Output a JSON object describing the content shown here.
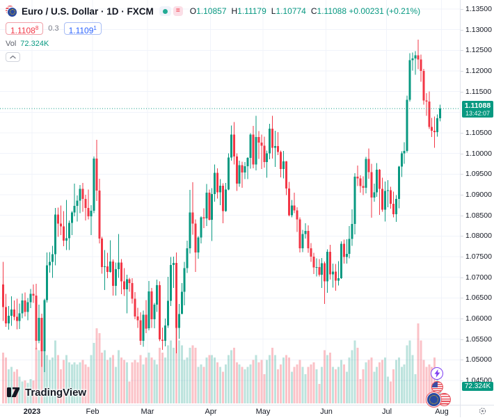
{
  "header": {
    "symbol_title": "Euro / U.S. Dollar · 1D · FXCM",
    "ohlc": {
      "o_label": "O",
      "o": "1.10857",
      "h_label": "H",
      "h": "1.11179",
      "l_label": "L",
      "l": "1.10774",
      "c_label": "C",
      "c": "1.11088",
      "change": "+0.00231",
      "change_pct": "(+0.21%)"
    },
    "bid": "1.1108",
    "bid_sup": "8",
    "spread": "0.3",
    "ask": "1.1109",
    "ask_sup": "1",
    "vol_label": "Vol",
    "vol_value": "72.324K",
    "collapse_glyph": "⌃",
    "fund_badge_glyph": "="
  },
  "price_scale": {
    "labels": [
      "1.13500",
      "1.13000",
      "1.12500",
      "1.12000",
      "1.11500",
      "1.10500",
      "1.10000",
      "1.09500",
      "1.09000",
      "1.08500",
      "1.08000",
      "1.07500",
      "1.07000",
      "1.06500",
      "1.06000",
      "1.05500",
      "1.05000",
      "1.04500"
    ],
    "current_price": "1.11088",
    "countdown": "13:42:07",
    "volume_badge": "72.324K"
  },
  "time_scale": {
    "markers": [
      {
        "label": "2023",
        "index": 11,
        "year": true
      },
      {
        "label": "Feb",
        "index": 33
      },
      {
        "label": "Mar",
        "index": 53
      },
      {
        "label": "Apr",
        "index": 76
      },
      {
        "label": "May",
        "index": 95
      },
      {
        "label": "Jun",
        "index": 118
      },
      {
        "label": "Jul",
        "index": 140
      },
      {
        "label": "Aug",
        "index": 160
      }
    ]
  },
  "logo": {
    "text": "TradingView"
  },
  "chart_data": {
    "type": "candlestick",
    "title": "Euro / U.S. Dollar",
    "timeframe": "1D",
    "exchange": "FXCM",
    "ylim": [
      1.045,
      1.135
    ],
    "grid_step": 0.005,
    "grid_on": true,
    "current_price": 1.11088,
    "volume_axis_max": 330,
    "colors": {
      "up": "#089981",
      "down": "#f23645",
      "vol_up": "rgba(8,153,129,0.27)",
      "vol_down": "rgba(242,54,69,0.3)",
      "grid": "#f0f3fa",
      "accent": "#089981"
    },
    "candles": [
      [
        1.0683,
        1.0737,
        1.0594,
        1.0628,
        210
      ],
      [
        1.0628,
        1.066,
        1.058,
        1.0588,
        190
      ],
      [
        1.0588,
        1.063,
        1.0573,
        1.0607,
        140
      ],
      [
        1.0607,
        1.0654,
        1.0582,
        1.0622,
        150
      ],
      [
        1.0622,
        1.0644,
        1.0596,
        1.0604,
        130
      ],
      [
        1.0604,
        1.0648,
        1.0574,
        1.0594,
        140
      ],
      [
        1.0594,
        1.0636,
        1.0575,
        1.0613,
        110
      ],
      [
        1.0613,
        1.0661,
        1.0601,
        1.0644,
        90
      ],
      [
        1.0644,
        1.0663,
        1.0605,
        1.0616,
        95
      ],
      [
        1.0616,
        1.065,
        1.0596,
        1.064,
        85
      ],
      [
        1.064,
        1.0672,
        1.0625,
        1.066,
        100
      ],
      [
        1.066,
        1.0683,
        1.0638,
        1.0656,
        95
      ],
      [
        1.0656,
        1.0684,
        1.0525,
        1.0546,
        230
      ],
      [
        1.0546,
        1.0634,
        1.054,
        1.0602,
        220
      ],
      [
        1.0602,
        1.0612,
        1.0483,
        1.0521,
        240
      ],
      [
        1.0521,
        1.0648,
        1.047,
        1.0645,
        300
      ],
      [
        1.0645,
        1.076,
        1.0639,
        1.0729,
        200
      ],
      [
        1.0729,
        1.0761,
        1.0711,
        1.0737,
        180
      ],
      [
        1.0737,
        1.0776,
        1.0699,
        1.0756,
        190
      ],
      [
        1.0756,
        1.0868,
        1.0729,
        1.0852,
        260
      ],
      [
        1.0852,
        1.0869,
        1.0798,
        1.083,
        200
      ],
      [
        1.083,
        1.0874,
        1.0802,
        1.0823,
        140
      ],
      [
        1.0823,
        1.086,
        1.0775,
        1.0789,
        180
      ],
      [
        1.0789,
        1.0887,
        1.0766,
        1.0795,
        200
      ],
      [
        1.0795,
        1.0838,
        1.0766,
        1.0832,
        170
      ],
      [
        1.0832,
        1.086,
        1.0802,
        1.0857,
        160
      ],
      [
        1.0857,
        1.0927,
        1.0848,
        1.0873,
        170
      ],
      [
        1.0873,
        1.0898,
        1.0835,
        1.0886,
        160
      ],
      [
        1.0886,
        1.0924,
        1.0855,
        1.0914,
        170
      ],
      [
        1.0914,
        1.0929,
        1.0859,
        1.089,
        180
      ],
      [
        1.089,
        1.09,
        1.0838,
        1.0868,
        160
      ],
      [
        1.0868,
        1.0913,
        1.084,
        1.0848,
        150
      ],
      [
        1.0848,
        1.0875,
        1.0802,
        1.0861,
        200
      ],
      [
        1.0861,
        1.0993,
        1.0855,
        1.0988,
        250
      ],
      [
        1.0988,
        1.1033,
        1.0885,
        1.091,
        310
      ],
      [
        1.091,
        1.0939,
        1.0782,
        1.0794,
        290
      ],
      [
        1.0794,
        1.0798,
        1.0709,
        1.0725,
        210
      ],
      [
        1.0725,
        1.0766,
        1.0669,
        1.0726,
        220
      ],
      [
        1.0726,
        1.0759,
        1.0698,
        1.0713,
        180
      ],
      [
        1.0713,
        1.079,
        1.0711,
        1.0738,
        190
      ],
      [
        1.0738,
        1.0743,
        1.0656,
        1.0679,
        200
      ],
      [
        1.0679,
        1.0736,
        1.0656,
        1.072,
        150
      ],
      [
        1.072,
        1.0805,
        1.0699,
        1.0736,
        220
      ],
      [
        1.0736,
        1.0744,
        1.0659,
        1.069,
        190
      ],
      [
        1.069,
        1.0722,
        1.0655,
        1.0671,
        180
      ],
      [
        1.0671,
        1.0706,
        1.0613,
        1.0695,
        170
      ],
      [
        1.0695,
        1.0699,
        1.0665,
        1.0686,
        90
      ],
      [
        1.0686,
        1.0698,
        1.0636,
        1.0648,
        170
      ],
      [
        1.0648,
        1.0664,
        1.0598,
        1.0605,
        180
      ],
      [
        1.0605,
        1.0626,
        1.0577,
        1.0596,
        170
      ],
      [
        1.0596,
        1.0615,
        1.0536,
        1.0546,
        200
      ],
      [
        1.0546,
        1.0619,
        1.0532,
        1.0609,
        160
      ],
      [
        1.0609,
        1.0645,
        1.0565,
        1.0576,
        190
      ],
      [
        1.0576,
        1.0691,
        1.0571,
        1.0666,
        210
      ],
      [
        1.0666,
        1.0674,
        1.0577,
        1.0598,
        190
      ],
      [
        1.0598,
        1.0638,
        1.0576,
        1.0634,
        180
      ],
      [
        1.0634,
        1.0694,
        1.0616,
        1.0681,
        160
      ],
      [
        1.0681,
        1.069,
        1.0545,
        1.0549,
        230
      ],
      [
        1.0549,
        1.0578,
        1.0524,
        1.0546,
        210
      ],
      [
        1.0546,
        1.06,
        1.0533,
        1.0583,
        190
      ],
      [
        1.0583,
        1.0701,
        1.0577,
        1.0643,
        240
      ],
      [
        1.0643,
        1.0749,
        1.063,
        1.073,
        260
      ],
      [
        1.073,
        1.075,
        1.0674,
        1.0735,
        230
      ],
      [
        1.0735,
        1.076,
        1.0516,
        1.0577,
        330
      ],
      [
        1.0577,
        1.0635,
        1.0551,
        1.0611,
        260
      ],
      [
        1.0611,
        1.0686,
        1.0611,
        1.0665,
        240
      ],
      [
        1.0665,
        1.0737,
        1.0632,
        1.0722,
        180
      ],
      [
        1.0722,
        1.0789,
        1.071,
        1.077,
        190
      ],
      [
        1.077,
        1.0912,
        1.0758,
        1.0857,
        230
      ],
      [
        1.0857,
        1.093,
        1.0803,
        1.083,
        240
      ],
      [
        1.083,
        1.084,
        1.0713,
        1.076,
        230
      ],
      [
        1.076,
        1.08,
        1.0745,
        1.0796,
        150
      ],
      [
        1.0796,
        1.0848,
        1.0782,
        1.0845,
        160
      ],
      [
        1.0845,
        1.0867,
        1.0819,
        1.0843,
        150
      ],
      [
        1.0843,
        1.0926,
        1.0824,
        1.0905,
        190
      ],
      [
        1.0905,
        1.0913,
        1.0838,
        1.0839,
        200
      ],
      [
        1.0839,
        1.0916,
        1.0788,
        1.0902,
        200
      ],
      [
        1.0902,
        1.0973,
        1.0883,
        1.0953,
        190
      ],
      [
        1.0953,
        1.0964,
        1.0891,
        1.0906,
        170
      ],
      [
        1.0906,
        1.0938,
        1.0875,
        1.0922,
        150
      ],
      [
        1.0922,
        1.0928,
        1.0831,
        1.086,
        130
      ],
      [
        1.086,
        1.0929,
        1.0859,
        1.0913,
        160
      ],
      [
        1.0913,
        1.1,
        1.0911,
        1.099,
        200
      ],
      [
        1.099,
        1.1068,
        1.0983,
        1.1046,
        220
      ],
      [
        1.1046,
        1.1076,
        1.0973,
        1.0993,
        230
      ],
      [
        1.0993,
        1.1,
        1.0909,
        1.0927,
        170
      ],
      [
        1.0927,
        1.0983,
        1.0919,
        1.0972,
        160
      ],
      [
        1.0972,
        1.098,
        1.0917,
        1.0954,
        150
      ],
      [
        1.0954,
        1.0979,
        1.0938,
        1.0969,
        140
      ],
      [
        1.0969,
        1.0991,
        1.0938,
        1.0989,
        150
      ],
      [
        1.0989,
        1.1049,
        1.0963,
        1.1046,
        160
      ],
      [
        1.1046,
        1.1067,
        1.0964,
        1.0973,
        180
      ],
      [
        1.0973,
        1.1091,
        1.0959,
        1.104,
        200
      ],
      [
        1.104,
        1.1054,
        1.0987,
        1.1026,
        170
      ],
      [
        1.1026,
        1.1046,
        1.0962,
        1.1019,
        180
      ],
      [
        1.1019,
        1.1041,
        1.0966,
        1.0979,
        120
      ],
      [
        1.0979,
        1.1007,
        1.0941,
        1.1,
        180
      ],
      [
        1.1,
        1.1072,
        1.0986,
        1.106,
        200
      ],
      [
        1.106,
        1.1091,
        1.0988,
        1.1014,
        230
      ],
      [
        1.1014,
        1.1055,
        1.0967,
        1.1018,
        200
      ],
      [
        1.1018,
        1.1052,
        1.0996,
        1.1004,
        140
      ],
      [
        1.1004,
        1.1007,
        1.0942,
        1.0962,
        160
      ],
      [
        1.0962,
        1.1006,
        1.094,
        1.0981,
        190
      ],
      [
        1.0981,
        1.0982,
        1.0899,
        1.0915,
        200
      ],
      [
        1.0915,
        1.0931,
        1.0848,
        1.085,
        190
      ],
      [
        1.085,
        1.0887,
        1.0845,
        1.0874,
        130
      ],
      [
        1.0874,
        1.0905,
        1.0855,
        1.0862,
        150
      ],
      [
        1.0862,
        1.087,
        1.081,
        1.084,
        160
      ],
      [
        1.084,
        1.0845,
        1.076,
        1.077,
        180
      ],
      [
        1.077,
        1.0815,
        1.0761,
        1.0805,
        150
      ],
      [
        1.0805,
        1.0831,
        1.0794,
        1.0812,
        120
      ],
      [
        1.0812,
        1.0826,
        1.0759,
        1.077,
        150
      ],
      [
        1.077,
        1.0783,
        1.0737,
        1.075,
        160
      ],
      [
        1.075,
        1.0759,
        1.0708,
        1.0724,
        170
      ],
      [
        1.0724,
        1.0746,
        1.0702,
        1.0725,
        140
      ],
      [
        1.0725,
        1.0744,
        1.0702,
        1.0706,
        80
      ],
      [
        1.0706,
        1.0747,
        1.0674,
        1.0734,
        150
      ],
      [
        1.0734,
        1.0738,
        1.0635,
        1.069,
        220
      ],
      [
        1.069,
        1.0768,
        1.0662,
        1.0762,
        200
      ],
      [
        1.0762,
        1.0779,
        1.0694,
        1.0707,
        210
      ],
      [
        1.0707,
        1.0733,
        1.0675,
        1.0714,
        150
      ],
      [
        1.0714,
        1.0732,
        1.0667,
        1.0692,
        140
      ],
      [
        1.0692,
        1.0739,
        1.068,
        1.0698,
        150
      ],
      [
        1.0698,
        1.0787,
        1.0696,
        1.0781,
        180
      ],
      [
        1.0781,
        1.0791,
        1.0733,
        1.0749,
        160
      ],
      [
        1.0749,
        1.0792,
        1.0733,
        1.0757,
        130
      ],
      [
        1.0757,
        1.0824,
        1.0746,
        1.0793,
        190
      ],
      [
        1.0793,
        1.0865,
        1.0776,
        1.0829,
        220
      ],
      [
        1.0829,
        1.0952,
        1.0804,
        1.0944,
        260
      ],
      [
        1.0944,
        1.0971,
        1.0921,
        1.094,
        230
      ],
      [
        1.094,
        1.0947,
        1.0905,
        1.0921,
        100
      ],
      [
        1.0921,
        1.0945,
        1.0899,
        1.0917,
        140
      ],
      [
        1.0917,
        1.0992,
        1.0903,
        1.0987,
        170
      ],
      [
        1.0987,
        1.1012,
        1.0939,
        1.0955,
        180
      ],
      [
        1.0955,
        1.0975,
        1.0844,
        1.0893,
        190
      ],
      [
        1.0893,
        1.0927,
        1.0883,
        1.0906,
        130
      ],
      [
        1.0906,
        1.0977,
        1.0895,
        1.0961,
        150
      ],
      [
        1.0961,
        1.0962,
        1.0851,
        1.0914,
        170
      ],
      [
        1.0914,
        1.0941,
        1.0859,
        1.0864,
        180
      ],
      [
        1.0864,
        1.0932,
        1.0835,
        1.0909,
        190
      ],
      [
        1.0909,
        1.0935,
        1.087,
        1.0911,
        110
      ],
      [
        1.0911,
        1.0919,
        1.0866,
        1.0878,
        90
      ],
      [
        1.0878,
        1.0908,
        1.0845,
        1.0853,
        140
      ],
      [
        1.0853,
        1.0899,
        1.0834,
        1.089,
        180
      ],
      [
        1.089,
        1.097,
        1.0867,
        1.0968,
        190
      ],
      [
        1.0968,
        1.1005,
        1.0943,
        1.1,
        150
      ],
      [
        1.1,
        1.1027,
        1.0975,
        1.1006,
        160
      ],
      [
        1.1006,
        1.114,
        1.1002,
        1.113,
        240
      ],
      [
        1.113,
        1.1243,
        1.1126,
        1.1226,
        260
      ],
      [
        1.1226,
        1.1245,
        1.1201,
        1.123,
        200
      ],
      [
        1.123,
        1.1248,
        1.1191,
        1.1238,
        120
      ],
      [
        1.1238,
        1.1276,
        1.1204,
        1.1228,
        330
      ],
      [
        1.1228,
        1.124,
        1.1174,
        1.12,
        260
      ],
      [
        1.12,
        1.1205,
        1.1118,
        1.1128,
        180
      ],
      [
        1.1128,
        1.1146,
        1.1091,
        1.1126,
        150
      ],
      [
        1.1126,
        1.115,
        1.1059,
        1.1064,
        160
      ],
      [
        1.1064,
        1.1086,
        1.104,
        1.1055,
        150
      ],
      [
        1.1055,
        1.109,
        1.1014,
        1.1052,
        190
      ],
      [
        1.1052,
        1.1095,
        1.1041,
        1.10857,
        140
      ],
      [
        1.10857,
        1.11179,
        1.10774,
        1.11088,
        72.324
      ]
    ]
  }
}
